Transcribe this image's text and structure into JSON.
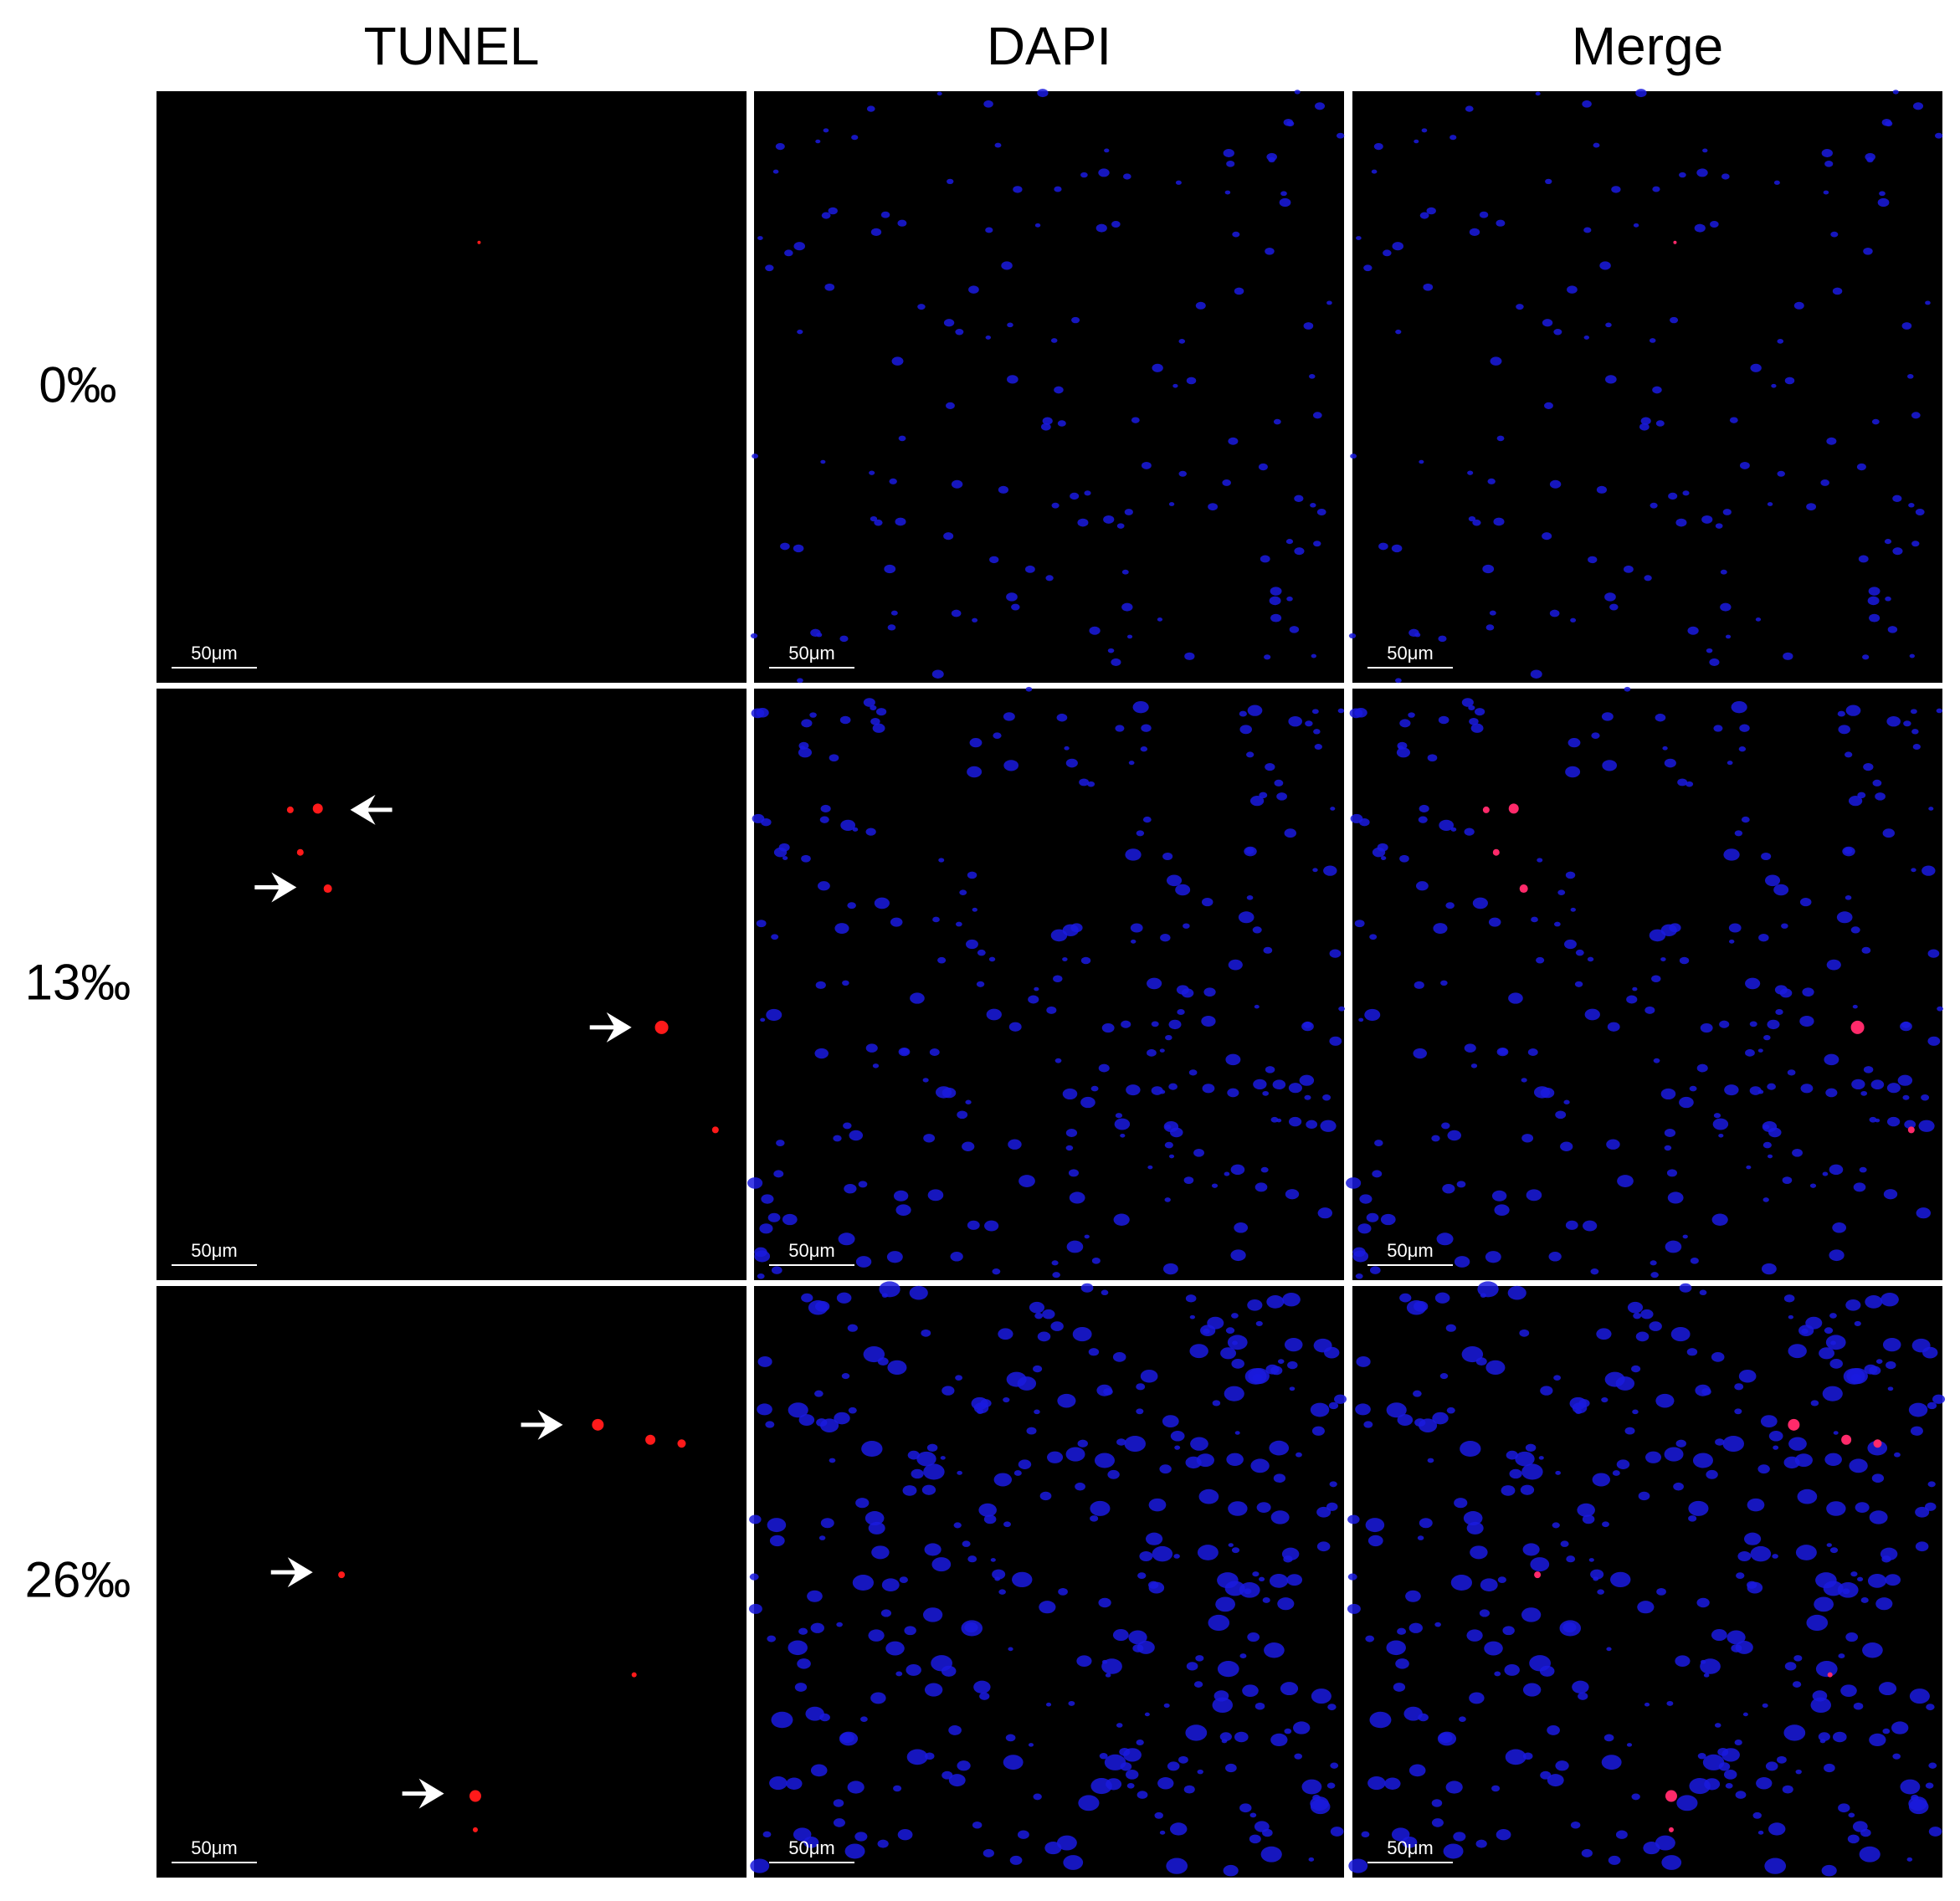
{
  "columns": [
    "TUNEL",
    "DAPI",
    "Merge"
  ],
  "rows": [
    {
      "label": "0‰",
      "scale_bars": [
        "50μm",
        "50μm",
        "50μm"
      ]
    },
    {
      "label": "13‰",
      "scale_bars": [
        "50μm",
        "50μm",
        "50μm"
      ]
    },
    {
      "label": "26‰",
      "scale_bars": [
        "50μm",
        "50μm",
        "50μm"
      ]
    }
  ]
}
